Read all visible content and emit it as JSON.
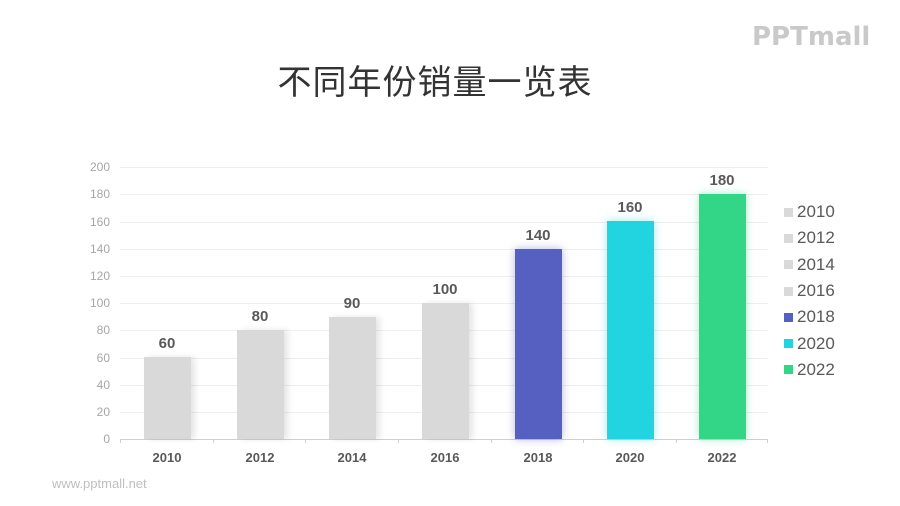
{
  "logo": "PPTmall",
  "title": "不同年份销量一览表",
  "footer": "www.pptmall.net",
  "chart_data": {
    "type": "bar",
    "title": "不同年份销量一览表",
    "xlabel": "",
    "ylabel": "",
    "categories": [
      "2010",
      "2012",
      "2014",
      "2016",
      "2018",
      "2020",
      "2022"
    ],
    "values": [
      60,
      80,
      90,
      100,
      140,
      160,
      180
    ],
    "colors": [
      "#d9d9d9",
      "#d9d9d9",
      "#d9d9d9",
      "#d9d9d9",
      "#5560c0",
      "#22d3e0",
      "#33d686"
    ],
    "ylim": [
      0,
      200
    ],
    "yticks": [
      "0",
      "20",
      "40",
      "60",
      "80",
      "100",
      "120",
      "140",
      "160",
      "180",
      "200"
    ],
    "grid": true,
    "data_labels": true,
    "legend_position": "right",
    "legend": [
      "2010",
      "2012",
      "2014",
      "2016",
      "2018",
      "2020",
      "2022"
    ]
  }
}
